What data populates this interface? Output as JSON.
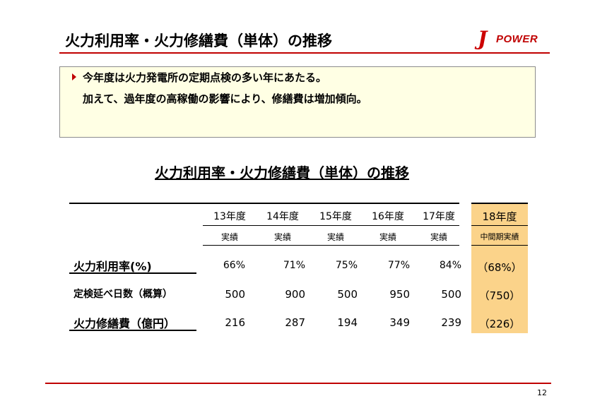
{
  "header": {
    "title": "火力利用率・火力修繕費（単体）の推移",
    "logo_mark": "J",
    "logo_text": "POWER"
  },
  "callout": {
    "lines": [
      "今年度は火力発電所の定期点検の多い年にあたる。",
      "加えて、過年度の高稼働の影響により、修繕費は増加傾向。"
    ]
  },
  "table": {
    "title": "火力利用率・火力修繕費（単体）の推移",
    "columns": [
      {
        "year": "13年度",
        "sub": "実績"
      },
      {
        "year": "14年度",
        "sub": "実績"
      },
      {
        "year": "15年度",
        "sub": "実績"
      },
      {
        "year": "16年度",
        "sub": "実績"
      },
      {
        "year": "17年度",
        "sub": "実績"
      },
      {
        "year": "18年度",
        "sub": "中間期実績"
      }
    ],
    "rows": [
      {
        "label": "火力利用率(%)",
        "values": [
          "66%",
          "71%",
          "75%",
          "77%",
          "84%",
          "（68%）"
        ]
      },
      {
        "label": "定検延べ日数（概算）",
        "values": [
          "500",
          "900",
          "500",
          "950",
          "500",
          "（750）"
        ]
      },
      {
        "label": "火力修繕費（億円）",
        "values": [
          "216",
          "287",
          "194",
          "349",
          "239",
          "（226）"
        ]
      }
    ],
    "highlight_color": "#fbd38a"
  },
  "footer": {
    "page_number": "12"
  },
  "colors": {
    "accent": "#c00000",
    "callout_bg": "#ffffe4"
  }
}
